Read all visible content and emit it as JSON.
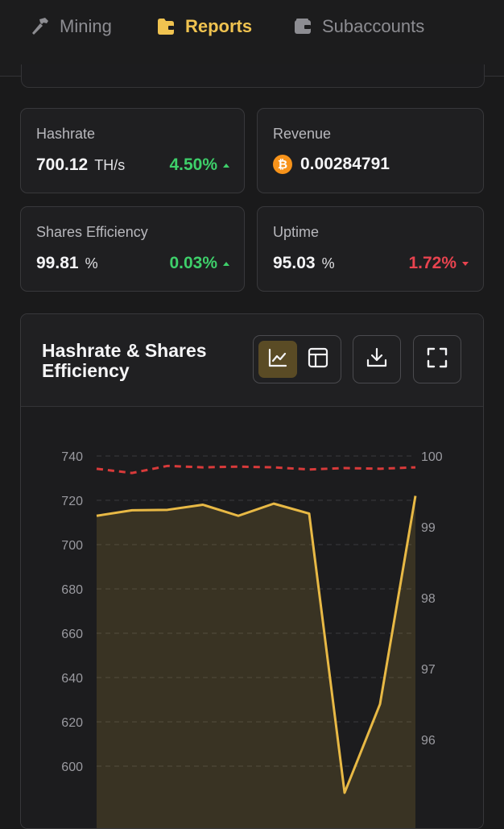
{
  "nav": {
    "tabs": [
      {
        "label": "Mining",
        "icon": "hammer-icon",
        "active": false
      },
      {
        "label": "Reports",
        "icon": "folder-icon",
        "active": true
      },
      {
        "label": "Subaccounts",
        "icon": "wallet-icon",
        "active": false
      }
    ]
  },
  "stats": {
    "hashrate": {
      "title": "Hashrate",
      "value": "700.12",
      "unit": "TH/s",
      "change": "4.50%",
      "direction": "up"
    },
    "revenue": {
      "title": "Revenue",
      "value": "0.00284791",
      "icon": "bitcoin-icon"
    },
    "shares_efficiency": {
      "title": "Shares Efficiency",
      "value": "99.81",
      "unit": "%",
      "change": "0.03%",
      "direction": "up"
    },
    "uptime": {
      "title": "Uptime",
      "value": "95.03",
      "unit": "%",
      "change": "1.72%",
      "direction": "down"
    }
  },
  "chart_panel": {
    "title": "Hashrate & Shares Efficiency",
    "buttons": [
      "chart-view",
      "table-view",
      "download",
      "fullscreen"
    ]
  },
  "colors": {
    "accent": "#f0c350",
    "up": "#3ecf6a",
    "down": "#e8434f",
    "hashrate_line": "#e8b945",
    "efficiency_line": "#d83a3a"
  },
  "chart_data": {
    "type": "area",
    "left_axis": {
      "ticks": [
        740,
        720,
        700,
        680,
        660,
        640,
        620,
        600
      ],
      "range": [
        592,
        746
      ]
    },
    "right_axis": {
      "ticks": [
        100,
        99,
        98,
        97,
        96
      ],
      "range": [
        95.2,
        100.3
      ]
    },
    "series": [
      {
        "axis": "left",
        "style": "solid-area",
        "values": [
          713,
          715.5,
          715.7,
          718,
          713,
          718.5,
          714,
          588,
          628,
          722
        ]
      },
      {
        "axis": "right",
        "style": "dashed",
        "values": [
          99.82,
          99.76,
          99.86,
          99.84,
          99.85,
          99.84,
          99.81,
          99.83,
          99.82,
          99.84
        ]
      }
    ],
    "grid": true
  }
}
